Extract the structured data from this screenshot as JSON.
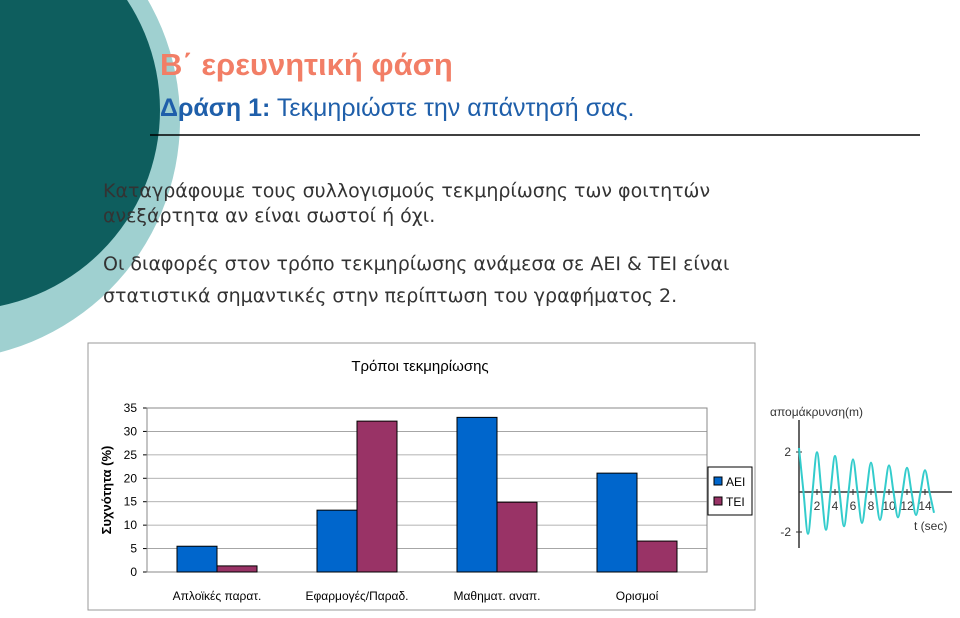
{
  "header": {
    "title": "Β΄ ερευνητική φάση",
    "subtitle_bold": "Δράση 1:",
    "subtitle_rest": " Τεκμηριώστε την απάντησή σας."
  },
  "body": [
    {
      "lines": [
        "Καταγράφουμε τους συλλογισμούς τεκμηρίωσης των φοιτητών",
        "ανεξάρτητα αν είναι σωστοί ή όχι."
      ]
    },
    {
      "lines": [
        "Οι διαφορές στον τρόπο τεκμηρίωσης ανάμεσα σε ΑΕΙ & ΤΕΙ είναι",
        "στατιστικά σημαντικές στην περίπτωση του γραφήματος 2."
      ]
    }
  ],
  "chart_data": [
    {
      "type": "bar",
      "title": "Τρόποι τεκμηρίωσης",
      "y_label": "Συχνότητα (%)",
      "categories": [
        "Απλοϊκές παρατ.",
        "Εφαρμογές/Παραδ.",
        "Μαθηματ. αναπ.",
        "Ορισμοί"
      ],
      "series": [
        {
          "name": "ΑΕΙ",
          "color": "#0066cc",
          "values": [
            5.5,
            13.2,
            33,
            21.1
          ]
        },
        {
          "name": "ΤΕΙ",
          "color": "#993366",
          "values": [
            1.3,
            32.2,
            14.9,
            6.6
          ]
        }
      ],
      "ylim": [
        0,
        35
      ],
      "yticks": [
        0,
        5,
        10,
        15,
        20,
        25,
        30,
        35
      ],
      "grid": true,
      "legend": "right"
    },
    {
      "type": "line",
      "y_label": "απομάκρυνση(m)",
      "x_label": "t (sec)",
      "x": [
        0,
        0.5,
        1,
        1.5,
        2,
        2.5,
        3,
        3.5,
        4,
        4.5,
        5,
        5.5,
        6,
        6.5,
        7,
        7.5,
        8,
        8.5,
        9,
        9.5,
        10,
        10.5,
        11,
        11.5,
        12,
        12.5,
        13,
        13.5,
        14,
        14.5,
        15
      ],
      "series": [
        {
          "color": "#33cccc",
          "values": [
            2.2,
            0,
            -2.09,
            0,
            1.99,
            0,
            -1.89,
            0,
            1.8,
            0,
            -1.71,
            0,
            1.63,
            0,
            -1.55,
            0,
            1.47,
            0,
            -1.4,
            0,
            1.33,
            0,
            -1.27,
            0,
            1.21,
            0,
            -1.15,
            0,
            1.09,
            0,
            -1.04
          ]
        }
      ],
      "xlim": [
        0,
        17
      ],
      "ylim": [
        -2.6,
        2.6
      ],
      "xticks": [
        2,
        4,
        6,
        8,
        10,
        12,
        14
      ],
      "yticks": [
        -2,
        2
      ]
    }
  ]
}
